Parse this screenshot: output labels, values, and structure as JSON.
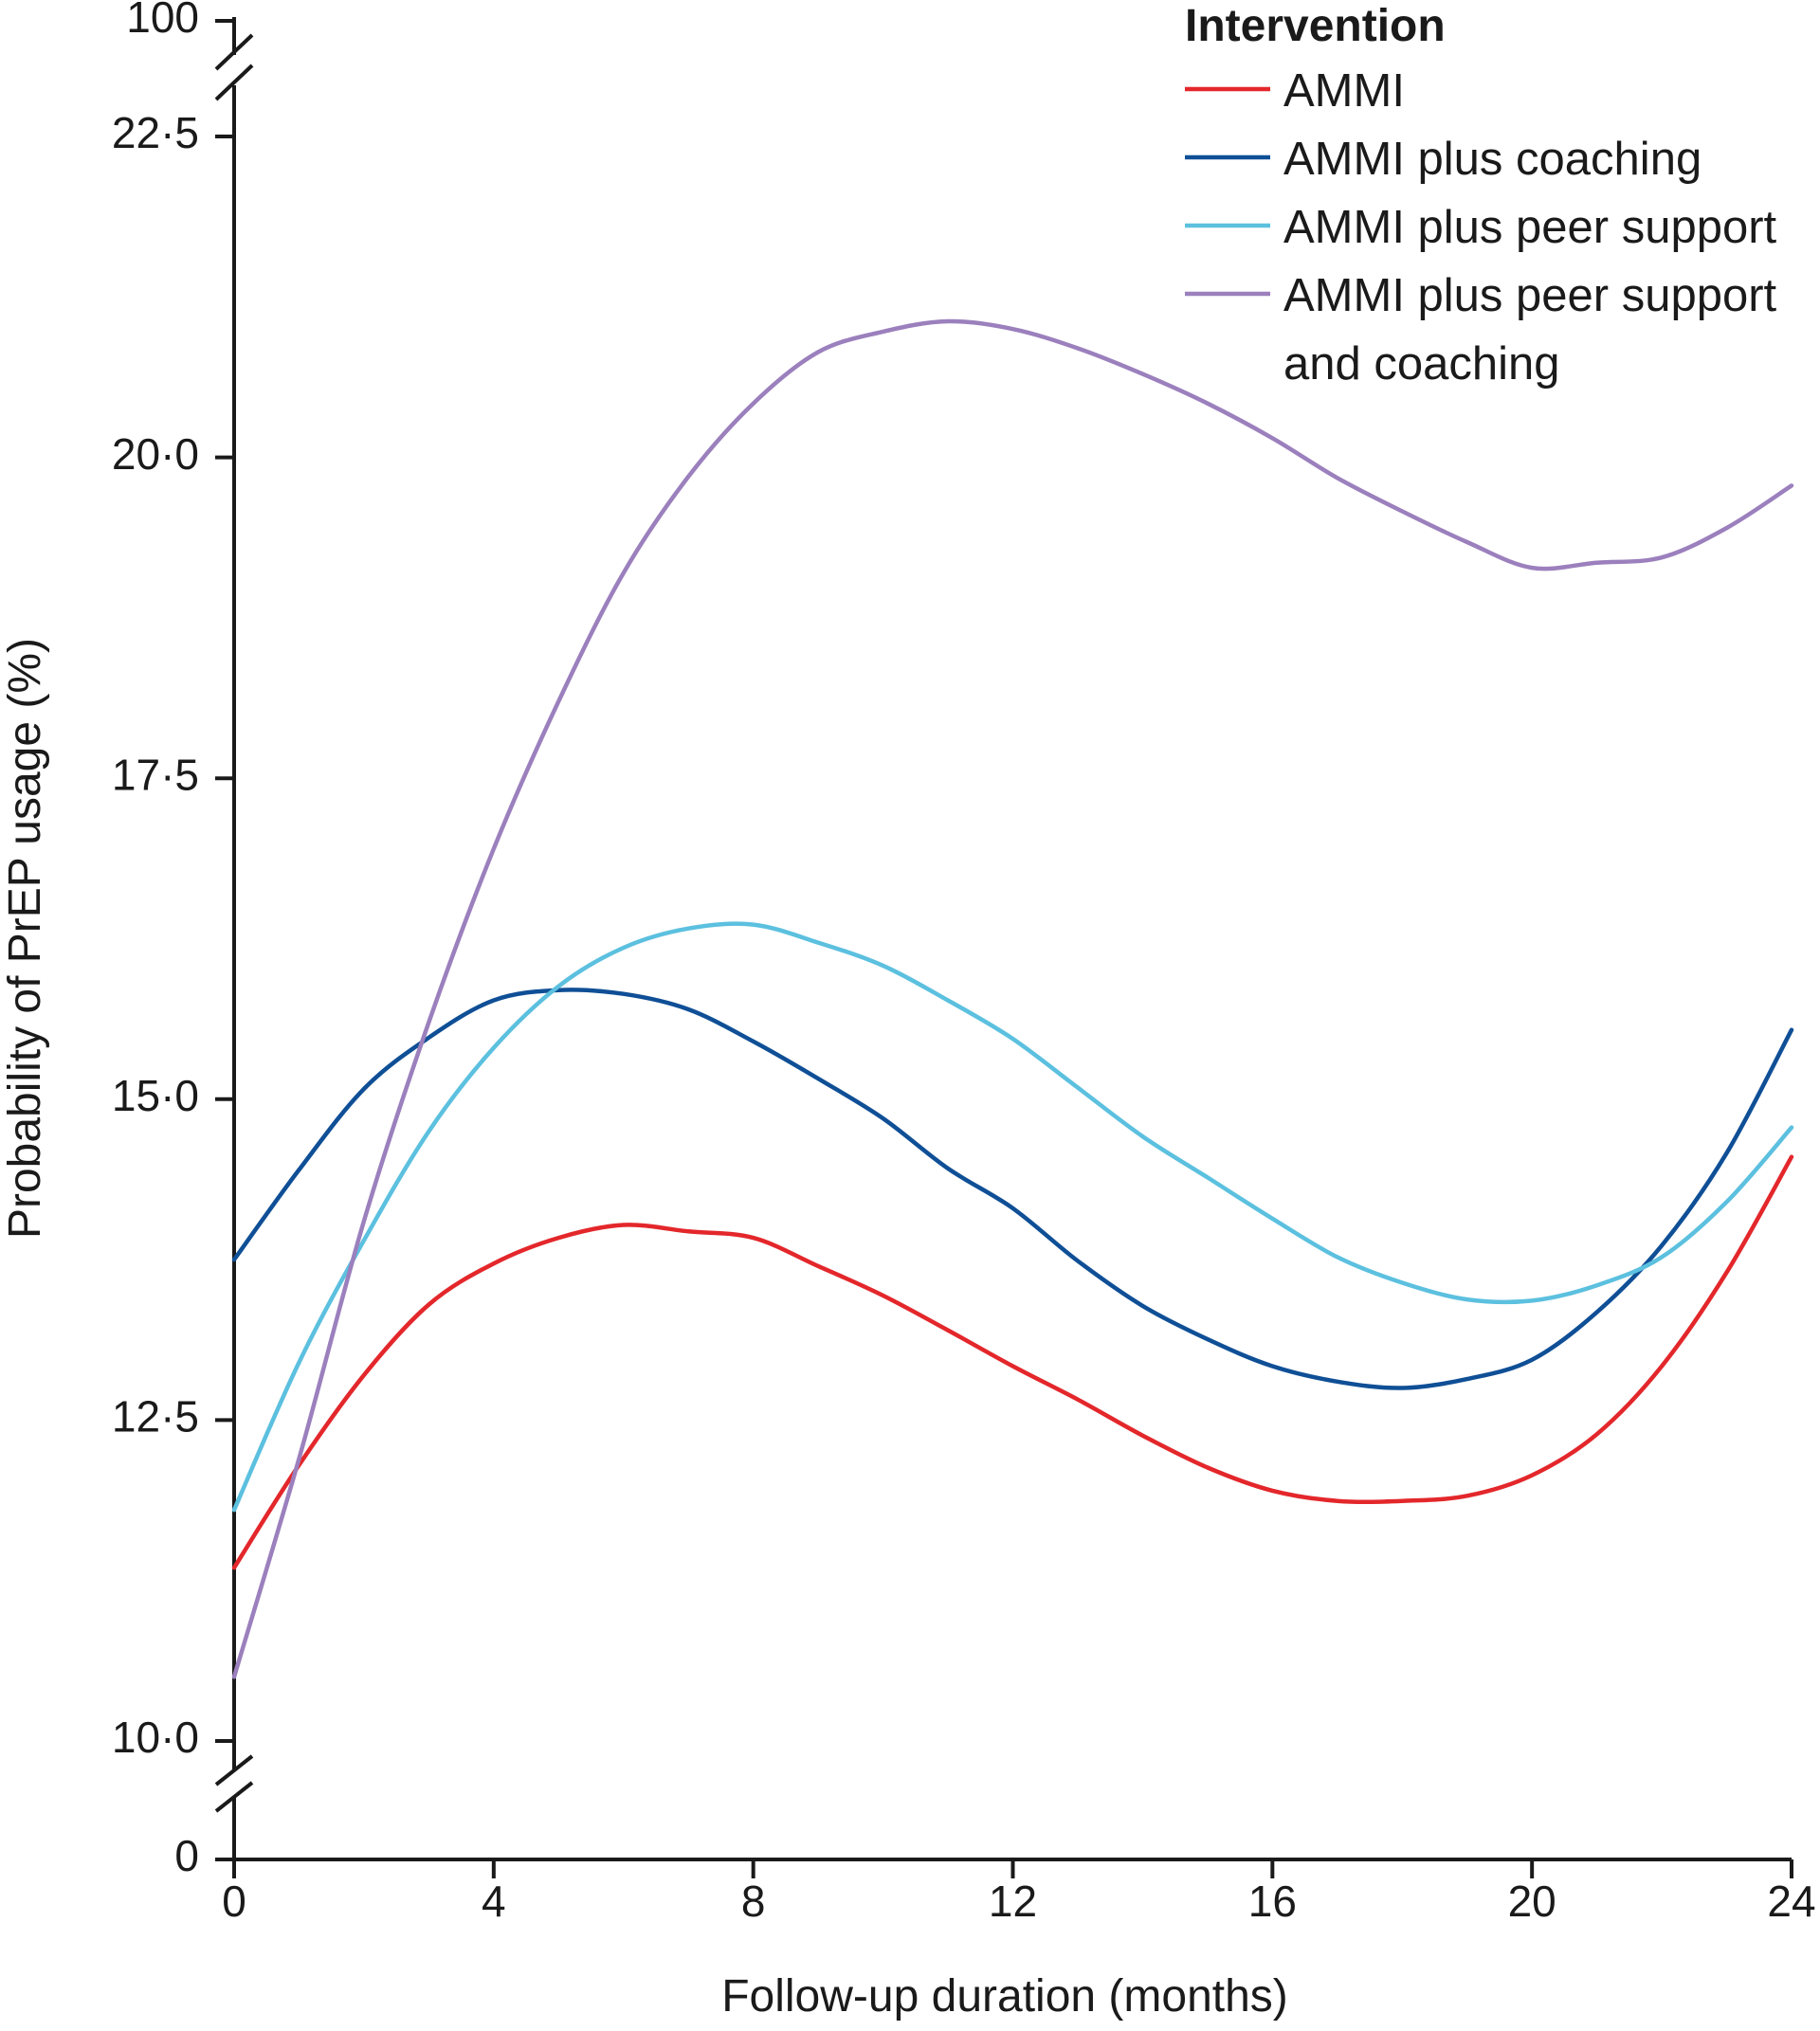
{
  "chart_data": {
    "type": "line",
    "title": "",
    "xlabel": "Follow-up duration (months)",
    "ylabel": "Probability of PrEP usage (%)",
    "x": [
      0,
      1,
      2,
      3,
      4,
      5,
      6,
      7,
      8,
      9,
      10,
      11,
      12,
      13,
      14,
      15,
      16,
      17,
      18,
      19,
      20,
      21,
      22,
      23,
      24
    ],
    "xlim": [
      0,
      24
    ],
    "ylim": [
      10.0,
      22.5
    ],
    "y_axis_break": {
      "below": 0,
      "above": 100
    },
    "x_ticks": [
      {
        "value": 0,
        "label": "0"
      },
      {
        "value": 4,
        "label": "4"
      },
      {
        "value": 8,
        "label": "8"
      },
      {
        "value": 12,
        "label": "12"
      },
      {
        "value": 16,
        "label": "16"
      },
      {
        "value": 20,
        "label": "20"
      },
      {
        "value": 24,
        "label": "24"
      }
    ],
    "y_ticks": [
      {
        "value": 10.0,
        "label": "10·0"
      },
      {
        "value": 12.5,
        "label": "12·5"
      },
      {
        "value": 15.0,
        "label": "15·0"
      },
      {
        "value": 17.5,
        "label": "17·5"
      },
      {
        "value": 20.0,
        "label": "20·0"
      },
      {
        "value": 22.5,
        "label": "22·5"
      }
    ],
    "y_break_labels": {
      "bottom": "0",
      "top": "100"
    },
    "legend": {
      "title": "Intervention",
      "placement": "top-right"
    },
    "series": [
      {
        "name": "AMMI",
        "legend_lines": [
          "AMMI"
        ],
        "color": "#e3272b",
        "values": [
          11.35,
          12.15,
          12.85,
          13.4,
          13.72,
          13.92,
          14.02,
          13.97,
          13.92,
          13.7,
          13.47,
          13.2,
          12.92,
          12.66,
          12.38,
          12.13,
          11.95,
          11.87,
          11.87,
          11.91,
          12.07,
          12.39,
          12.92,
          13.65,
          14.55
        ]
      },
      {
        "name": "AMMI plus coaching",
        "legend_lines": [
          "AMMI plus coaching"
        ],
        "color": "#0f4f96",
        "values": [
          13.75,
          14.45,
          15.08,
          15.48,
          15.77,
          15.85,
          15.82,
          15.7,
          15.45,
          15.16,
          14.85,
          14.46,
          14.15,
          13.74,
          13.39,
          13.13,
          12.92,
          12.8,
          12.75,
          12.82,
          12.97,
          13.34,
          13.86,
          14.58,
          15.54
        ]
      },
      {
        "name": "AMMI plus peer support",
        "legend_lines": [
          "AMMI plus peer support"
        ],
        "color": "#5cc0df",
        "values": [
          11.8,
          12.95,
          13.9,
          14.75,
          15.4,
          15.88,
          16.18,
          16.33,
          16.36,
          16.22,
          16.04,
          15.77,
          15.47,
          15.09,
          14.71,
          14.39,
          14.07,
          13.77,
          13.57,
          13.44,
          13.43,
          13.55,
          13.77,
          14.2,
          14.78
        ]
      },
      {
        "name": "AMMI plus peer support and coaching",
        "legend_lines": [
          "AMMI plus peer support",
          "and coaching"
        ],
        "color": "#9b80bd",
        "values": [
          10.5,
          12.2,
          14.05,
          15.6,
          16.95,
          18.1,
          19.1,
          19.85,
          20.42,
          20.82,
          20.98,
          21.06,
          21.0,
          20.85,
          20.65,
          20.42,
          20.15,
          19.84,
          19.58,
          19.34,
          19.14,
          19.18,
          19.22,
          19.45,
          19.78
        ]
      }
    ]
  }
}
